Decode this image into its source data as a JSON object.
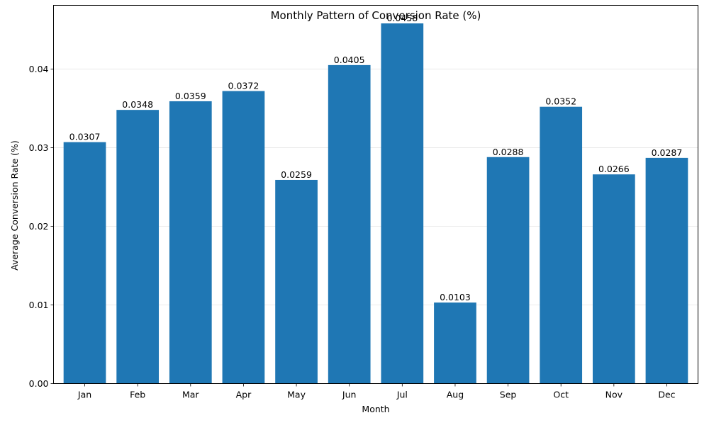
{
  "chart_data": {
    "type": "bar",
    "title": "Monthly Pattern of Conversion Rate (%)",
    "xlabel": "Month",
    "ylabel": "Average Conversion Rate (%)",
    "categories": [
      "Jan",
      "Feb",
      "Mar",
      "Apr",
      "May",
      "Jun",
      "Jul",
      "Aug",
      "Sep",
      "Oct",
      "Nov",
      "Dec"
    ],
    "values": [
      0.0307,
      0.0348,
      0.0359,
      0.0372,
      0.0259,
      0.0405,
      0.0458,
      0.0103,
      0.0288,
      0.0352,
      0.0266,
      0.0287
    ],
    "data_labels": [
      "0.0307",
      "0.0348",
      "0.0359",
      "0.0372",
      "0.0259",
      "0.0405",
      "0.0458",
      "0.0103",
      "0.0288",
      "0.0352",
      "0.0266",
      "0.0287"
    ],
    "yticks": [
      0,
      0.01,
      0.02,
      0.03,
      0.04
    ],
    "ytick_labels": [
      "0.00",
      "0.01",
      "0.02",
      "0.03",
      "0.04"
    ],
    "ylim": [
      0,
      0.0481
    ],
    "grid": "y",
    "bar_color": "#1f77b4"
  }
}
